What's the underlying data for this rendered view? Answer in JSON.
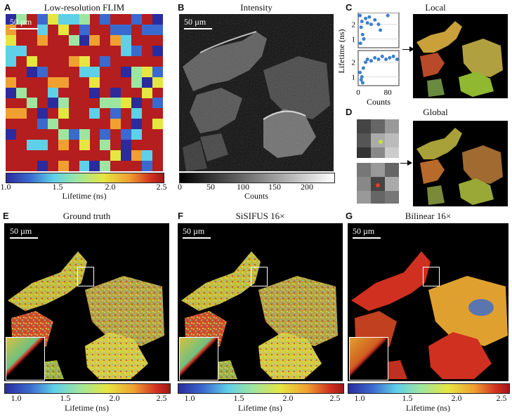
{
  "panels": {
    "A": {
      "label": "A",
      "title": "Low-resolution FLIM",
      "scale": "50 µm"
    },
    "B": {
      "label": "B",
      "title": "Intensity",
      "scale": "50 µm"
    },
    "C": {
      "label": "C",
      "title": "Local"
    },
    "D": {
      "label": "D",
      "title": "Global"
    },
    "E": {
      "label": "E",
      "title": "Ground truth",
      "scale": "50 µm"
    },
    "F": {
      "label": "F",
      "title": "SiSIFUS 16×",
      "scale": "50 µm"
    },
    "G": {
      "label": "G",
      "title": "Bilinear 16×",
      "scale": "50 µm"
    }
  },
  "lifetime_colorbar": {
    "ticks": [
      "1.0",
      "1.5",
      "2.0",
      "2.5"
    ],
    "label": "Lifetime (ns)"
  },
  "intensity_colorbar": {
    "ticks": [
      "0",
      "50",
      "100",
      "150",
      "200"
    ],
    "label": "Counts"
  },
  "chart_data": {
    "type": "scatter",
    "ylabel": "Lifetime (ns)",
    "xlabel": "Counts",
    "xticks": [
      "0",
      "80"
    ],
    "yticks": [
      "1",
      "2"
    ],
    "series": [
      {
        "points": [
          [
            5,
            2.6
          ],
          [
            10,
            2.2
          ],
          [
            8,
            1.8
          ],
          [
            12,
            1.3
          ],
          [
            20,
            2.4
          ],
          [
            25,
            2.1
          ],
          [
            30,
            2.5
          ],
          [
            45,
            2.3
          ],
          [
            55,
            2.0
          ],
          [
            60,
            1.6
          ],
          [
            80,
            2.6
          ],
          [
            15,
            1.0
          ],
          [
            6,
            0.7
          ],
          [
            35,
            2.0
          ]
        ]
      },
      {
        "points": [
          [
            5,
            1.3
          ],
          [
            10,
            1.0
          ],
          [
            8,
            0.8
          ],
          [
            14,
            1.6
          ],
          [
            20,
            2.0
          ],
          [
            25,
            2.2
          ],
          [
            35,
            2.1
          ],
          [
            45,
            2.3
          ],
          [
            55,
            2.2
          ],
          [
            65,
            2.4
          ],
          [
            75,
            2.2
          ],
          [
            85,
            2.3
          ],
          [
            95,
            2.4
          ],
          [
            105,
            2.2
          ],
          [
            12,
            0.6
          ]
        ]
      }
    ]
  },
  "colors": {
    "lifetime_low": "#2b2b9e",
    "lifetime_high": "#b01c1c",
    "accent": "#3b7fd0"
  }
}
